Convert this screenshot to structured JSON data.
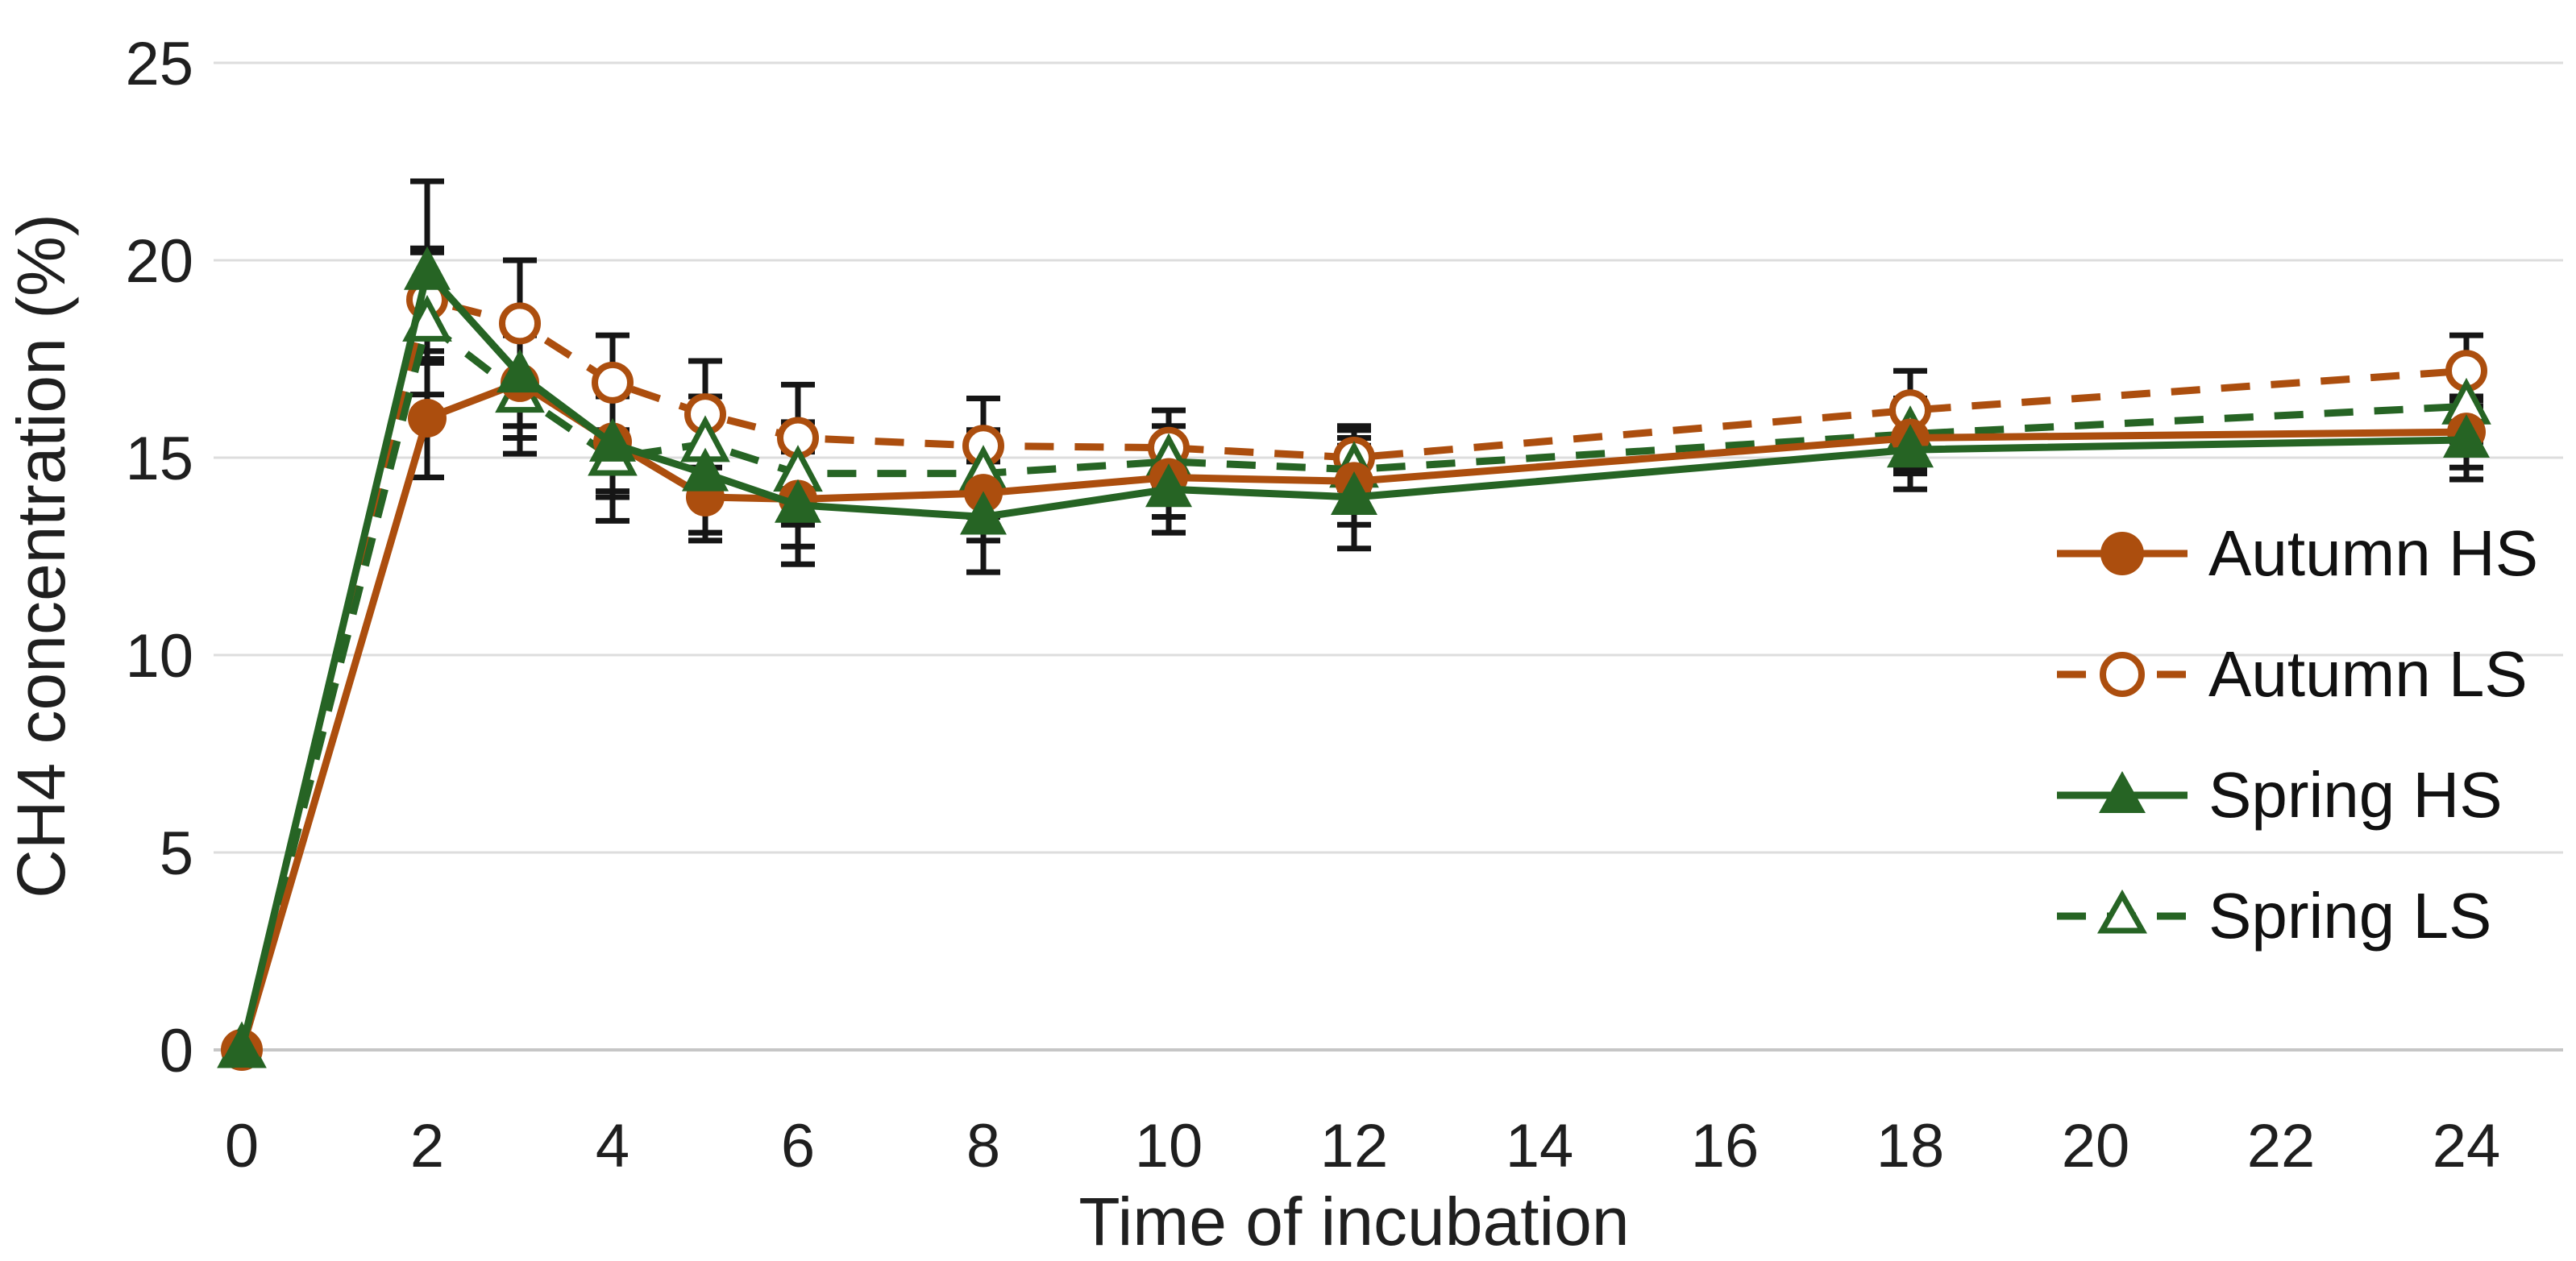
{
  "figure": {
    "background": "#FFFFFF"
  },
  "colors": {
    "autumn": "#AC4E0E",
    "spring": "#266424",
    "error_bar": "#151515",
    "gridline": "#DDDDDD",
    "axis_line": "#C6C6C6",
    "text": "#1F1F1F"
  },
  "axes": {
    "y": {
      "title": "CH4 concentration (%)",
      "ticks": [
        0,
        5,
        10,
        15,
        20,
        25
      ],
      "min": 0,
      "max": 25
    },
    "x": {
      "title": "Time of incubation",
      "ticks": [
        0,
        2,
        4,
        6,
        8,
        10,
        12,
        14,
        16,
        18,
        20,
        22,
        24
      ],
      "min": 0,
      "max": 24
    }
  },
  "chart_data": {
    "type": "line",
    "title": "",
    "xlabel": "Time of incubation",
    "ylabel": "CH4 concentration (%)",
    "x": [
      0,
      2,
      3,
      4,
      5,
      6,
      8,
      10,
      12,
      18,
      24
    ],
    "xlim": [
      0,
      24
    ],
    "ylim": [
      0,
      25
    ],
    "grid": "horizontal",
    "error_bars": true,
    "legend_position": "right-inside",
    "series": [
      {
        "name": "Autumn HS",
        "color_key": "autumn",
        "line": "solid",
        "marker": "circle-filled",
        "values": [
          0,
          16.0,
          16.9,
          15.4,
          14.0,
          13.95,
          14.1,
          14.5,
          14.4,
          15.5,
          15.65
        ],
        "errors": [
          0,
          1.5,
          1.4,
          1.4,
          1.1,
          1.2,
          1.2,
          1.0,
          1.1,
          0.9,
          0.9
        ]
      },
      {
        "name": "Autumn LS",
        "color_key": "autumn",
        "line": "dashed",
        "marker": "circle-open",
        "values": [
          0,
          19.0,
          18.4,
          16.9,
          16.1,
          15.5,
          15.3,
          15.25,
          15.0,
          16.2,
          17.2
        ],
        "errors": [
          0,
          1.3,
          1.6,
          1.2,
          1.35,
          1.35,
          1.2,
          0.95,
          0.8,
          1.0,
          0.9
        ]
      },
      {
        "name": "Spring HS",
        "color_key": "spring",
        "line": "solid",
        "marker": "triangle-filled",
        "values": [
          0,
          19.7,
          17.1,
          15.35,
          14.6,
          13.8,
          13.5,
          14.2,
          14.0,
          15.2,
          15.45
        ],
        "errors": [
          0,
          2.3,
          1.3,
          1.2,
          1.5,
          1.5,
          1.4,
          1.1,
          1.3,
          1.0,
          1.0
        ]
      },
      {
        "name": "Spring LS",
        "color_key": "spring",
        "line": "dashed",
        "marker": "triangle-open",
        "values": [
          0,
          18.4,
          16.6,
          15.0,
          15.35,
          14.6,
          14.6,
          14.9,
          14.7,
          15.6,
          16.3
        ],
        "errors": [
          0,
          1.8,
          1.5,
          1.6,
          1.2,
          1.3,
          1.1,
          0.9,
          1.0,
          0.9,
          0.9
        ]
      }
    ]
  }
}
